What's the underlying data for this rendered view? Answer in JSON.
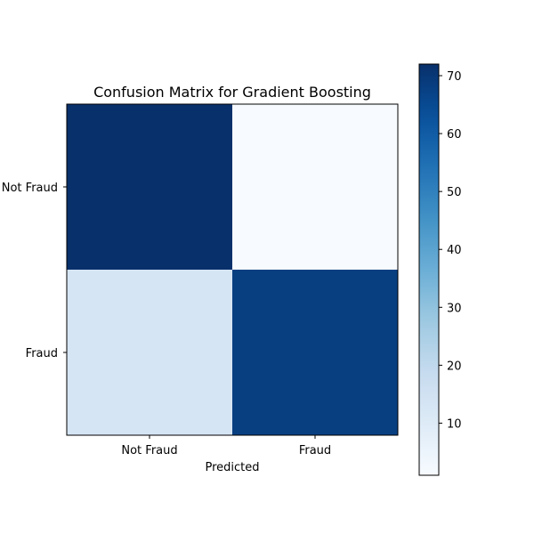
{
  "chart_data": {
    "type": "heatmap",
    "title": "Confusion Matrix for Gradient Boosting",
    "xlabel": "Predicted",
    "ylabel": "",
    "x_categories": [
      "Not Fraud",
      "Fraud"
    ],
    "y_categories": [
      "Not Fraud",
      "Fraud"
    ],
    "matrix": [
      [
        72,
        1
      ],
      [
        13,
        68
      ]
    ],
    "colormap": "Blues",
    "colorbar": {
      "min": 1,
      "max": 72,
      "ticks": [
        10,
        20,
        30,
        40,
        50,
        60,
        70
      ]
    },
    "grid": false
  }
}
